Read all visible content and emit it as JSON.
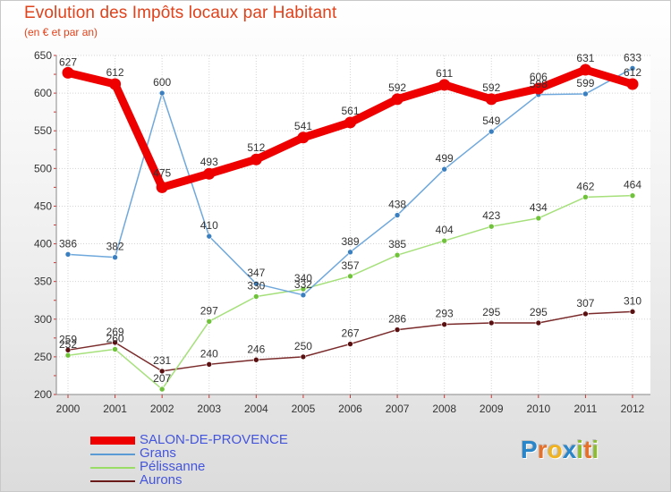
{
  "header": {
    "title": "Evolution des Impôts locaux par Habitant",
    "subtitle": "(en € et par an)"
  },
  "chart_data": {
    "type": "line",
    "x": [
      "2000",
      "2001",
      "2002",
      "2003",
      "2004",
      "2005",
      "2006",
      "2007",
      "2008",
      "2009",
      "2010",
      "2011",
      "2012"
    ],
    "ylim": [
      200,
      650
    ],
    "yticks": [
      "200",
      "250",
      "300",
      "350",
      "400",
      "450",
      "500",
      "550",
      "600",
      "650"
    ],
    "grid": true,
    "legend_position": "bottom-left",
    "series": [
      {
        "name": "SALON-DE-PROVENCE",
        "color": "#ee0000",
        "values": [
          627,
          612,
          475,
          493,
          512,
          541,
          561,
          592,
          611,
          592,
          606,
          631,
          612
        ]
      },
      {
        "name": "Grans",
        "color": "#5b9bd5",
        "values": [
          386,
          382,
          600,
          410,
          347,
          332,
          389,
          438,
          499,
          549,
          598,
          599,
          633
        ]
      },
      {
        "name": "Pélissanne",
        "color": "#99dd66",
        "values": [
          252,
          260,
          207,
          297,
          330,
          340,
          357,
          385,
          404,
          423,
          434,
          462,
          464
        ]
      },
      {
        "name": "Aurons",
        "color": "#6b1a1a",
        "values": [
          259,
          269,
          231,
          240,
          246,
          250,
          267,
          286,
          293,
          295,
          295,
          307,
          310
        ]
      }
    ]
  },
  "logo": {
    "letters": [
      "P",
      "r",
      "o",
      "x",
      "i",
      "t",
      "i"
    ],
    "colors": [
      "#2b86c9",
      "#e5702a",
      "#f0b21f",
      "#2b86c9",
      "#8bbd2f",
      "#e5702a",
      "#8bbd2f"
    ]
  }
}
